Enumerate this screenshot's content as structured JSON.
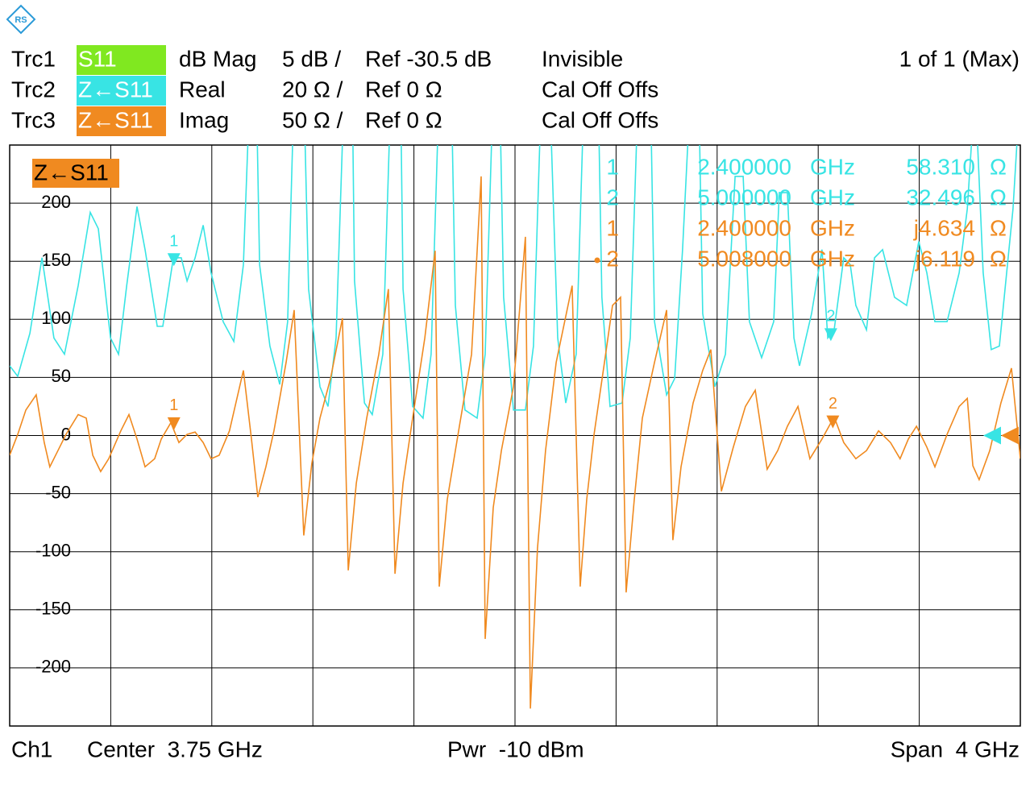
{
  "chart_data": {
    "type": "line",
    "active_trace": "1 of 1 (Max)",
    "xlim": [
      1.75,
      5.75
    ],
    "ylim": [
      -250,
      250
    ],
    "yticks": [
      -200,
      -150,
      -100,
      -50,
      0,
      50,
      100,
      150,
      200
    ],
    "grid": true,
    "series": [
      {
        "name": "Trc1",
        "measurement": "S11",
        "format": "dB Mag",
        "scale": "5 dB /",
        "ref": "Ref -30.5 dB",
        "status": "Invisible",
        "color": "#80e820",
        "badge_text_color": "#ffffff"
      },
      {
        "name": "Trc2",
        "measurement": "Z←S11",
        "format": "Real",
        "scale": "20 Ω /",
        "ref": "Ref 0 Ω",
        "status": "Cal Off Offs",
        "color": "#38e4e4",
        "badge_text_color": "#ffffff",
        "ylim": [
          -100,
          100
        ],
        "x": [
          1.75,
          1.782,
          1.83,
          1.878,
          1.925,
          1.967,
          2.021,
          2.069,
          2.101,
          2.149,
          2.181,
          2.213,
          2.254,
          2.286,
          2.334,
          2.356,
          2.398,
          2.429,
          2.452,
          2.484,
          2.516,
          2.547,
          2.595,
          2.637,
          2.675,
          2.701,
          2.726,
          2.739,
          2.78,
          2.819,
          2.85,
          2.876,
          2.914,
          2.933,
          2.978,
          3.01,
          3.042,
          3.074,
          3.106,
          3.115,
          3.154,
          3.185,
          3.227,
          3.259,
          3.297,
          3.307,
          3.345,
          3.386,
          3.418,
          3.45,
          3.498,
          3.514,
          3.552,
          3.6,
          3.632,
          3.664,
          3.689,
          3.705,
          3.744,
          3.791,
          3.823,
          3.855,
          3.887,
          3.919,
          3.951,
          3.992,
          4.024,
          4.079,
          4.094,
          4.126,
          4.174,
          4.206,
          4.238,
          4.286,
          4.302,
          4.35,
          4.382,
          4.413,
          4.445,
          4.477,
          4.493,
          4.541,
          4.583,
          4.621,
          4.653,
          4.678,
          4.726,
          4.774,
          4.796,
          4.828,
          4.854,
          4.876,
          4.924,
          4.965,
          4.988,
          5.013,
          5.051,
          5.077,
          5.099,
          5.141,
          5.173,
          5.205,
          5.252,
          5.3,
          5.348,
          5.38,
          5.412,
          5.46,
          5.508,
          5.54,
          5.571,
          5.603,
          5.635,
          5.667,
          5.721,
          5.75
        ],
        "values": [
          24,
          20.4,
          35.2,
          61.2,
          33.6,
          28,
          51.6,
          76.8,
          71.2,
          33.6,
          28,
          51.6,
          78.8,
          64,
          37.6,
          37.6,
          61.2,
          61.2,
          53.2,
          61.2,
          72.4,
          56,
          39.2,
          32.4,
          58.8,
          120,
          120,
          58.8,
          30.8,
          17.6,
          39.2,
          120,
          120,
          50.4,
          16.8,
          10,
          33.6,
          120,
          120,
          53.2,
          11.2,
          7.2,
          28,
          120,
          120,
          50.4,
          10,
          6,
          28,
          120,
          120,
          44.8,
          8.8,
          6,
          28,
          120,
          120,
          47.6,
          8.8,
          8.8,
          30.8,
          120,
          120,
          33.6,
          11.2,
          28,
          120,
          120,
          47.6,
          10,
          11.2,
          33.6,
          120,
          120,
          39.2,
          14,
          19.6,
          64,
          120,
          120,
          42,
          16.8,
          28,
          89.2,
          89.2,
          39.2,
          26.8,
          39.2,
          83.6,
          83.6,
          33.6,
          24,
          42,
          64,
          33.6,
          36.4,
          61.2,
          58.8,
          44.8,
          36.4,
          61.2,
          64,
          47.6,
          44.8,
          66.8,
          56,
          39.2,
          39.2,
          56,
          78,
          120,
          56,
          29.6,
          30.8,
          78,
          120
        ]
      },
      {
        "name": "Trc3",
        "measurement": "Z←S11",
        "format": "Imag",
        "scale": "50 Ω /",
        "ref": "Ref 0 Ω",
        "status": "Cal Off Offs",
        "color": "#f08a20",
        "badge_text_color": "#ffffff",
        "x": [
          1.75,
          1.782,
          1.814,
          1.855,
          1.887,
          1.909,
          1.941,
          1.973,
          2.021,
          2.053,
          2.079,
          2.11,
          2.142,
          2.19,
          2.222,
          2.254,
          2.286,
          2.324,
          2.35,
          2.388,
          2.42,
          2.452,
          2.484,
          2.516,
          2.547,
          2.579,
          2.62,
          2.675,
          2.707,
          2.732,
          2.764,
          2.796,
          2.844,
          2.876,
          2.914,
          2.946,
          2.978,
          3.02,
          3.067,
          3.09,
          3.122,
          3.163,
          3.211,
          3.249,
          3.275,
          3.307,
          3.345,
          3.393,
          3.434,
          3.45,
          3.482,
          3.53,
          3.578,
          3.616,
          3.632,
          3.664,
          3.696,
          3.744,
          3.791,
          3.811,
          3.839,
          3.871,
          3.913,
          3.976,
          4.008,
          4.034,
          4.063,
          4.104,
          4.136,
          4.168,
          4.19,
          4.222,
          4.254,
          4.302,
          4.35,
          4.375,
          4.407,
          4.455,
          4.493,
          4.525,
          4.567,
          4.614,
          4.662,
          4.701,
          4.748,
          4.79,
          4.828,
          4.87,
          4.917,
          4.965,
          5.013,
          5.051,
          5.099,
          5.141,
          5.189,
          5.236,
          5.274,
          5.307,
          5.339,
          5.38,
          5.412,
          5.46,
          5.508,
          5.54,
          5.562,
          5.587,
          5.629,
          5.673,
          5.715,
          5.75
        ],
        "values": [
          -17,
          1,
          22,
          35,
          -6,
          -27,
          -13,
          1,
          18,
          15,
          -17,
          -31,
          -20,
          4,
          18,
          -3,
          -27,
          -20,
          -3,
          11,
          -6,
          1,
          3,
          -6,
          -20,
          -17,
          4,
          56,
          -3,
          -53,
          -27,
          4,
          63,
          108,
          -86,
          -24,
          15,
          49,
          101,
          -116,
          -41,
          15,
          70,
          126,
          -119,
          -41,
          15,
          84,
          159,
          -130,
          -55,
          8,
          70,
          223,
          -175,
          -62,
          -13,
          42,
          171,
          -235,
          -97,
          -13,
          63,
          129,
          -130,
          -55,
          1,
          63,
          112,
          119,
          -135,
          -55,
          15,
          63,
          108,
          -90,
          -27,
          28,
          56,
          74,
          -48,
          -10,
          25,
          39,
          -29,
          -13,
          8,
          25,
          -20,
          -3,
          16,
          -6,
          -20,
          -13,
          4,
          -6,
          -20,
          -3,
          8,
          -10,
          -27,
          1,
          25,
          32,
          -26,
          -38,
          -13,
          28,
          58,
          -20
        ]
      }
    ],
    "markers": [
      {
        "series": 1,
        "label": "1",
        "x": {
          "value": 2.4,
          "label": "2.400000"
        },
        "x_unit": "GHz",
        "value": 58.31,
        "value_label": "58.310",
        "unit": "Ω"
      },
      {
        "series": 1,
        "label": "2",
        "x": {
          "value": 5.0,
          "label": "5.000000"
        },
        "x_unit": "GHz",
        "value": 32.496,
        "value_label": "32.496",
        "unit": "Ω"
      },
      {
        "series": 2,
        "label": "1",
        "x": {
          "value": 2.4,
          "label": "2.400000"
        },
        "x_unit": "GHz",
        "value": 4.634,
        "value_label": "j4.634",
        "unit": "Ω"
      },
      {
        "series": 2,
        "label": "2",
        "active": true,
        "x": {
          "value": 5.008,
          "label": "5.008000"
        },
        "x_unit": "GHz",
        "value": 6.119,
        "value_label": "j6.119",
        "unit": "Ω"
      }
    ],
    "footer": {
      "channel": "Ch1",
      "center": "Center  3.75 GHz",
      "power": "Pwr  -10 dBm",
      "span": "Span  4 GHz"
    }
  }
}
